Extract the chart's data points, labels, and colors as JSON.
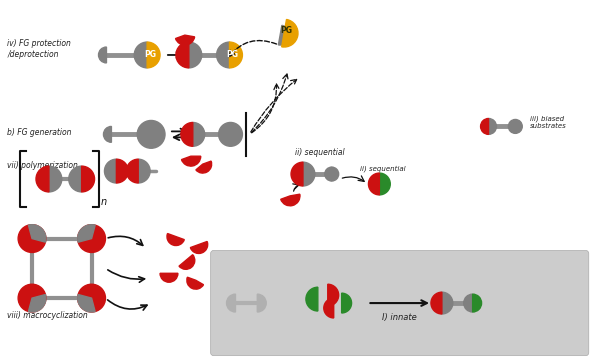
{
  "bg_color": "#ffffff",
  "colors": {
    "gray": "#808080",
    "light_gray": "#b0b0b0",
    "mid_gray": "#999999",
    "red": "#cc1111",
    "orange": "#e8a000",
    "green": "#2a8a2a",
    "black": "#111111",
    "box_bg": "#cccccc",
    "bar_gray": "#909090"
  },
  "texts": {
    "row1a": "iv) FG protection",
    "row1b": "/deprotection",
    "row2": "b) FG generation",
    "row3": "vii) polymerization",
    "row4": "viii) macrocyclization",
    "pg": "PG",
    "biased": "iii) biased\nsubstrates",
    "sequential": "ii) sequential",
    "innate": "I) innate"
  }
}
